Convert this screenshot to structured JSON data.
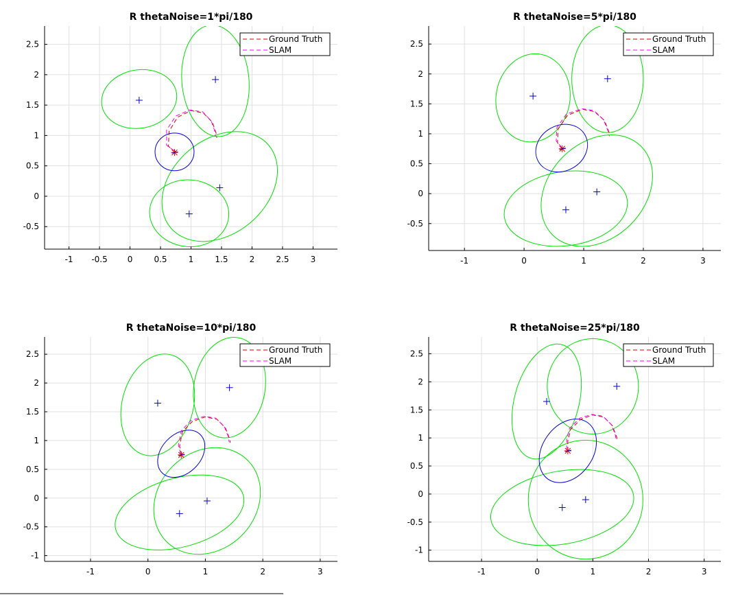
{
  "chart_data": [
    {
      "type": "scatter",
      "title": "R thetaNoise=1*pi/180",
      "xlim": [
        -1.4,
        3.4
      ],
      "ylim": [
        -0.87,
        2.8
      ],
      "xticks": [
        -1,
        -0.5,
        0,
        0.5,
        1,
        1.5,
        2,
        2.5,
        3
      ],
      "xticklabels": [
        "-1",
        "-0.5",
        "0",
        "0.5",
        "1",
        "1.5",
        "2",
        "2.5",
        "3"
      ],
      "yticks": [
        -0.5,
        0,
        0.5,
        1,
        1.5,
        2,
        2.5
      ],
      "yticklabels": [
        "-0.5",
        "0",
        "0.5",
        "1",
        "1.5",
        "2",
        "2.5"
      ],
      "grid": true,
      "legend": {
        "position": "top-right",
        "entries": [
          {
            "label": "Ground Truth",
            "color": "#cc0000",
            "style": "dashed"
          },
          {
            "label": "SLAM",
            "color": "#ff00ff",
            "style": "dashed"
          }
        ]
      },
      "series": [
        {
          "name": "Ground Truth",
          "color": "#cc0000",
          "points": [
            [
              0.75,
              0.73
            ],
            [
              0.63,
              0.82
            ],
            [
              0.64,
              1.07
            ],
            [
              0.78,
              1.3
            ],
            [
              1.0,
              1.41
            ],
            [
              1.2,
              1.37
            ],
            [
              1.35,
              1.22
            ],
            [
              1.42,
              1.01
            ],
            [
              1.42,
              0.96
            ]
          ]
        },
        {
          "name": "SLAM",
          "color": "#ff00ff",
          "points": [
            [
              0.72,
              0.75
            ],
            [
              0.6,
              0.84
            ],
            [
              0.6,
              1.09
            ],
            [
              0.75,
              1.32
            ],
            [
              0.98,
              1.42
            ],
            [
              1.19,
              1.39
            ],
            [
              1.33,
              1.24
            ],
            [
              1.4,
              1.04
            ],
            [
              1.4,
              0.98
            ]
          ]
        }
      ],
      "landmarks": [
        [
          0.15,
          1.58
        ],
        [
          1.4,
          1.92
        ],
        [
          1.47,
          0.14
        ],
        [
          0.97,
          -0.29
        ]
      ],
      "robot": [
        0.73,
        0.72
      ],
      "landmark_ellipses": [
        {
          "cx": 0.15,
          "cy": 1.6,
          "rx": 0.62,
          "ry": 0.48,
          "angle": -10
        },
        {
          "cx": 1.4,
          "cy": 1.9,
          "rx": 0.55,
          "ry": 0.92,
          "angle": -5
        },
        {
          "cx": 1.47,
          "cy": 0.16,
          "rx": 1.05,
          "ry": 0.78,
          "angle": -40
        },
        {
          "cx": 0.97,
          "cy": -0.28,
          "rx": 0.65,
          "ry": 0.55,
          "angle": 5
        }
      ],
      "robot_ellipse": {
        "cx": 0.73,
        "cy": 0.73,
        "rx": 0.32,
        "ry": 0.31,
        "angle": 0
      }
    },
    {
      "type": "scatter",
      "title": "R thetaNoise=5*pi/180",
      "xlim": [
        -1.6,
        3.3
      ],
      "ylim": [
        -0.95,
        2.8
      ],
      "xticks": [
        -1,
        0,
        1,
        2,
        3
      ],
      "xticklabels": [
        "-1",
        "0",
        "1",
        "2",
        "3"
      ],
      "yticks": [
        -0.5,
        0,
        0.5,
        1,
        1.5,
        2,
        2.5
      ],
      "yticklabels": [
        "-0.5",
        "0",
        "0.5",
        "1",
        "1.5",
        "2",
        "2.5"
      ],
      "grid": true,
      "legend": {
        "position": "top-right",
        "entries": [
          {
            "label": "Ground Truth",
            "color": "#cc0000",
            "style": "dashed"
          },
          {
            "label": "SLAM",
            "color": "#ff00ff",
            "style": "dashed"
          }
        ]
      },
      "series": [
        {
          "name": "Ground Truth",
          "color": "#cc0000",
          "points": [
            [
              0.65,
              0.75
            ],
            [
              0.56,
              0.85
            ],
            [
              0.57,
              1.08
            ],
            [
              0.73,
              1.31
            ],
            [
              0.98,
              1.41
            ],
            [
              1.18,
              1.37
            ],
            [
              1.35,
              1.22
            ],
            [
              1.43,
              1.01
            ],
            [
              1.43,
              0.96
            ]
          ]
        },
        {
          "name": "SLAM",
          "color": "#ff00ff",
          "points": [
            [
              0.63,
              0.77
            ],
            [
              0.54,
              0.88
            ],
            [
              0.55,
              1.1
            ],
            [
              0.71,
              1.33
            ],
            [
              0.97,
              1.42
            ],
            [
              1.17,
              1.39
            ],
            [
              1.33,
              1.24
            ],
            [
              1.41,
              1.04
            ],
            [
              1.41,
              0.98
            ]
          ]
        }
      ],
      "landmarks": [
        [
          0.15,
          1.63
        ],
        [
          1.4,
          1.92
        ],
        [
          1.22,
          0.03
        ],
        [
          0.7,
          -0.27
        ]
      ],
      "robot": [
        0.64,
        0.75
      ],
      "landmark_ellipses": [
        {
          "cx": 0.15,
          "cy": 1.6,
          "rx": 0.62,
          "ry": 0.74,
          "angle": 10
        },
        {
          "cx": 1.4,
          "cy": 1.92,
          "rx": 0.6,
          "ry": 0.9,
          "angle": 0
        },
        {
          "cx": 1.22,
          "cy": 0.05,
          "rx": 1.05,
          "ry": 0.8,
          "angle": -45
        },
        {
          "cx": 0.7,
          "cy": -0.25,
          "rx": 1.04,
          "ry": 0.62,
          "angle": -8
        }
      ],
      "robot_ellipse": {
        "cx": 0.63,
        "cy": 0.76,
        "rx": 0.45,
        "ry": 0.38,
        "angle": -30
      }
    },
    {
      "type": "scatter",
      "title": "R thetaNoise=10*pi/180",
      "xlim": [
        -1.8,
        3.3
      ],
      "ylim": [
        -1.1,
        2.8
      ],
      "xticks": [
        -1,
        0,
        1,
        2,
        3
      ],
      "xticklabels": [
        "-1",
        "0",
        "1",
        "2",
        "3"
      ],
      "yticks": [
        -1,
        -0.5,
        0,
        0.5,
        1,
        1.5,
        2,
        2.5
      ],
      "yticklabels": [
        "-1",
        "-0.5",
        "0",
        "0.5",
        "1",
        "1.5",
        "2",
        "2.5"
      ],
      "grid": true,
      "legend": {
        "position": "top-right",
        "entries": [
          {
            "label": "Ground Truth",
            "color": "#cc0000",
            "style": "dashed"
          },
          {
            "label": "SLAM",
            "color": "#ff00ff",
            "style": "dashed"
          }
        ]
      },
      "series": [
        {
          "name": "Ground Truth",
          "color": "#cc0000",
          "points": [
            [
              0.59,
              0.75
            ],
            [
              0.55,
              0.9
            ],
            [
              0.6,
              1.15
            ],
            [
              0.77,
              1.33
            ],
            [
              1.0,
              1.41
            ],
            [
              1.2,
              1.37
            ],
            [
              1.35,
              1.22
            ],
            [
              1.43,
              1.01
            ],
            [
              1.43,
              0.96
            ]
          ]
        },
        {
          "name": "SLAM",
          "color": "#ff00ff",
          "points": [
            [
              0.57,
              0.77
            ],
            [
              0.53,
              0.92
            ],
            [
              0.58,
              1.17
            ],
            [
              0.75,
              1.35
            ],
            [
              0.98,
              1.42
            ],
            [
              1.18,
              1.39
            ],
            [
              1.33,
              1.24
            ],
            [
              1.41,
              1.04
            ],
            [
              1.41,
              0.98
            ]
          ]
        }
      ],
      "landmarks": [
        [
          0.17,
          1.65
        ],
        [
          1.42,
          1.92
        ],
        [
          1.03,
          -0.05
        ],
        [
          0.55,
          -0.27
        ]
      ],
      "robot": [
        0.58,
        0.75
      ],
      "landmark_ellipses": [
        {
          "cx": 0.17,
          "cy": 1.62,
          "rx": 0.62,
          "ry": 0.9,
          "angle": 15
        },
        {
          "cx": 1.42,
          "cy": 1.92,
          "rx": 0.62,
          "ry": 0.88,
          "angle": 10
        },
        {
          "cx": 1.03,
          "cy": -0.05,
          "rx": 1.0,
          "ry": 0.85,
          "angle": -45
        },
        {
          "cx": 0.55,
          "cy": -0.25,
          "rx": 1.15,
          "ry": 0.6,
          "angle": -15
        }
      ],
      "robot_ellipse": {
        "cx": 0.58,
        "cy": 0.77,
        "rx": 0.47,
        "ry": 0.34,
        "angle": -45
      }
    },
    {
      "type": "scatter",
      "title": "R thetaNoise=25*pi/180",
      "xlim": [
        -1.95,
        3.3
      ],
      "ylim": [
        -1.2,
        2.8
      ],
      "xticks": [
        -1,
        0,
        1,
        2,
        3
      ],
      "xticklabels": [
        "-1",
        "0",
        "1",
        "2",
        "3"
      ],
      "yticks": [
        -1,
        -0.5,
        0,
        0.5,
        1,
        1.5,
        2,
        2.5
      ],
      "yticklabels": [
        "-1",
        "-0.5",
        "0",
        "0.5",
        "1",
        "1.5",
        "2",
        "2.5"
      ],
      "grid": true,
      "legend": {
        "position": "top-right",
        "entries": [
          {
            "label": "Ground Truth",
            "color": "#cc0000",
            "style": "dashed"
          },
          {
            "label": "SLAM",
            "color": "#ff00ff",
            "style": "dashed"
          }
        ]
      },
      "series": [
        {
          "name": "Ground Truth",
          "color": "#cc0000",
          "points": [
            [
              0.55,
              0.77
            ],
            [
              0.55,
              0.95
            ],
            [
              0.6,
              1.15
            ],
            [
              0.78,
              1.33
            ],
            [
              1.0,
              1.41
            ],
            [
              1.2,
              1.37
            ],
            [
              1.35,
              1.22
            ],
            [
              1.43,
              1.01
            ],
            [
              1.43,
              0.96
            ]
          ]
        },
        {
          "name": "SLAM",
          "color": "#ff00ff",
          "points": [
            [
              0.53,
              0.79
            ],
            [
              0.53,
              0.97
            ],
            [
              0.58,
              1.17
            ],
            [
              0.76,
              1.35
            ],
            [
              0.98,
              1.42
            ],
            [
              1.18,
              1.39
            ],
            [
              1.33,
              1.24
            ],
            [
              1.41,
              1.04
            ],
            [
              1.41,
              0.98
            ]
          ]
        }
      ],
      "landmarks": [
        [
          0.17,
          1.65
        ],
        [
          1.43,
          1.92
        ],
        [
          0.87,
          -0.1
        ],
        [
          0.45,
          -0.24
        ]
      ],
      "robot": [
        0.55,
        0.77
      ],
      "landmark_ellipses": [
        {
          "cx": 0.17,
          "cy": 1.65,
          "rx": 0.58,
          "ry": 1.05,
          "angle": 15
        },
        {
          "cx": 1.0,
          "cy": 1.92,
          "rx": 0.82,
          "ry": 0.85,
          "angle": 0
        },
        {
          "cx": 0.87,
          "cy": -0.1,
          "rx": 1.03,
          "ry": 1.06,
          "angle": 0
        },
        {
          "cx": 0.45,
          "cy": -0.24,
          "rx": 1.3,
          "ry": 0.65,
          "angle": -10
        }
      ],
      "robot_ellipse": {
        "cx": 0.55,
        "cy": 0.77,
        "rx": 0.62,
        "ry": 0.45,
        "angle": -55
      }
    }
  ]
}
